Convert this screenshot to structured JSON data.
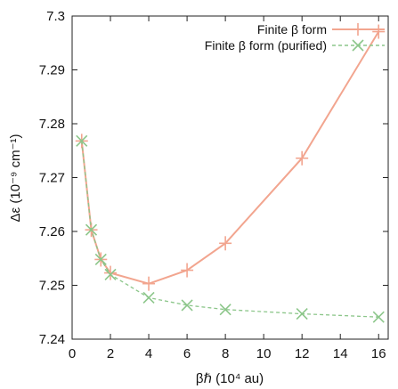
{
  "chart_data": {
    "type": "line",
    "xlabel": "βℏ (10⁴ au)",
    "ylabel": "Δε (10⁻⁹ cm⁻¹)",
    "xlim": [
      0,
      16.5
    ],
    "ylim": [
      7.24,
      7.3
    ],
    "x_ticks": [
      0,
      2,
      4,
      6,
      8,
      10,
      12,
      14,
      16
    ],
    "x_tick_labels": [
      "0",
      "2",
      "4",
      "6",
      "8",
      "10",
      "12",
      "14",
      "16"
    ],
    "y_ticks": [
      7.24,
      7.25,
      7.26,
      7.27,
      7.28,
      7.29,
      7.3
    ],
    "y_tick_labels": [
      "7.24",
      "7.25",
      "7.26",
      "7.27",
      "7.28",
      "7.29",
      "7.3"
    ],
    "grid": false,
    "legend_position": "top-right",
    "series": [
      {
        "name": "Finite β form",
        "color": "#f2a58f",
        "line_style": "solid",
        "marker": "plus",
        "x": [
          0.5,
          1,
          1.5,
          2,
          4,
          6,
          8,
          12,
          16
        ],
        "y": [
          7.2768,
          7.2603,
          7.2548,
          7.2523,
          7.2503,
          7.2528,
          7.2578,
          7.2736,
          7.2971
        ]
      },
      {
        "name": "Finite β form (purified)",
        "color": "#8cc68a",
        "line_style": "dashed",
        "marker": "x",
        "x": [
          0.5,
          1,
          1.5,
          2,
          4,
          6,
          8,
          12,
          16
        ],
        "y": [
          7.2768,
          7.2603,
          7.2548,
          7.252,
          7.2477,
          7.2463,
          7.2455,
          7.2447,
          7.2441
        ]
      }
    ]
  }
}
